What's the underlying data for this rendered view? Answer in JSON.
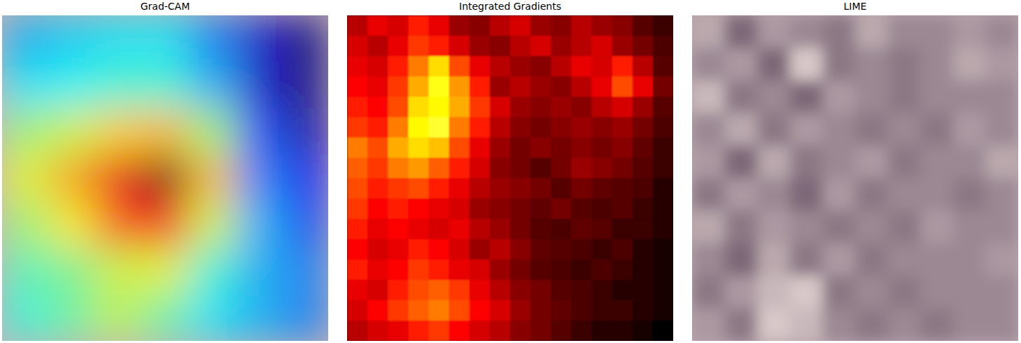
{
  "chart_data": [
    {
      "type": "heatmap",
      "title": "Grad-CAM",
      "tick_labels": false,
      "cells": [
        [
          0.35,
          0.38,
          0.4,
          0.4,
          0.3,
          0.15,
          0.08
        ],
        [
          0.4,
          0.42,
          0.45,
          0.45,
          0.35,
          0.15,
          0.08
        ],
        [
          0.55,
          0.6,
          0.68,
          0.7,
          0.55,
          0.25,
          0.12
        ],
        [
          0.62,
          0.72,
          0.88,
          0.98,
          0.7,
          0.3,
          0.2
        ],
        [
          0.55,
          0.65,
          0.8,
          0.85,
          0.6,
          0.35,
          0.25
        ],
        [
          0.48,
          0.52,
          0.6,
          0.62,
          0.45,
          0.35,
          0.3
        ],
        [
          0.45,
          0.5,
          0.58,
          0.5,
          0.4,
          0.35,
          0.3
        ]
      ]
    },
    {
      "type": "heatmap",
      "title": "Integrated Gradients",
      "tick_labels": false,
      "cells": [
        [
          0.25,
          0.3,
          0.28,
          0.35,
          0.3,
          0.22,
          0.2,
          0.25,
          0.28,
          0.22,
          0.2,
          0.25,
          0.22,
          0.2,
          0.15,
          0.12
        ],
        [
          0.28,
          0.25,
          0.3,
          0.38,
          0.35,
          0.28,
          0.22,
          0.2,
          0.25,
          0.28,
          0.22,
          0.25,
          0.28,
          0.22,
          0.18,
          0.14
        ],
        [
          0.3,
          0.28,
          0.35,
          0.45,
          0.55,
          0.4,
          0.3,
          0.25,
          0.22,
          0.2,
          0.25,
          0.3,
          0.28,
          0.35,
          0.25,
          0.15
        ],
        [
          0.32,
          0.3,
          0.38,
          0.5,
          0.6,
          0.48,
          0.35,
          0.22,
          0.25,
          0.22,
          0.2,
          0.25,
          0.3,
          0.4,
          0.3,
          0.18
        ],
        [
          0.35,
          0.32,
          0.4,
          0.55,
          0.58,
          0.5,
          0.38,
          0.28,
          0.22,
          0.2,
          0.22,
          0.2,
          0.25,
          0.28,
          0.22,
          0.15
        ],
        [
          0.38,
          0.35,
          0.45,
          0.58,
          0.62,
          0.45,
          0.35,
          0.25,
          0.2,
          0.18,
          0.2,
          0.22,
          0.2,
          0.22,
          0.18,
          0.14
        ],
        [
          0.45,
          0.4,
          0.5,
          0.55,
          0.52,
          0.4,
          0.3,
          0.22,
          0.18,
          0.2,
          0.18,
          0.2,
          0.18,
          0.2,
          0.16,
          0.12
        ],
        [
          0.42,
          0.38,
          0.45,
          0.48,
          0.42,
          0.35,
          0.28,
          0.2,
          0.18,
          0.15,
          0.18,
          0.22,
          0.2,
          0.18,
          0.15,
          0.12
        ],
        [
          0.4,
          0.35,
          0.38,
          0.4,
          0.35,
          0.3,
          0.25,
          0.22,
          0.2,
          0.18,
          0.15,
          0.18,
          0.16,
          0.15,
          0.14,
          0.1
        ],
        [
          0.38,
          0.32,
          0.35,
          0.32,
          0.3,
          0.28,
          0.22,
          0.2,
          0.18,
          0.16,
          0.18,
          0.15,
          0.14,
          0.15,
          0.12,
          0.1
        ],
        [
          0.35,
          0.3,
          0.32,
          0.3,
          0.28,
          0.3,
          0.25,
          0.22,
          0.18,
          0.15,
          0.14,
          0.16,
          0.15,
          0.12,
          0.12,
          0.1
        ],
        [
          0.32,
          0.28,
          0.3,
          0.35,
          0.32,
          0.28,
          0.22,
          0.25,
          0.2,
          0.16,
          0.15,
          0.14,
          0.12,
          0.14,
          0.1,
          0.08
        ],
        [
          0.35,
          0.3,
          0.32,
          0.38,
          0.35,
          0.3,
          0.28,
          0.22,
          0.18,
          0.15,
          0.14,
          0.12,
          0.14,
          0.12,
          0.1,
          0.08
        ],
        [
          0.3,
          0.28,
          0.35,
          0.4,
          0.42,
          0.38,
          0.3,
          0.25,
          0.2,
          0.18,
          0.15,
          0.14,
          0.12,
          0.1,
          0.1,
          0.08
        ],
        [
          0.28,
          0.32,
          0.38,
          0.42,
          0.45,
          0.4,
          0.32,
          0.28,
          0.22,
          0.18,
          0.16,
          0.14,
          0.12,
          0.12,
          0.1,
          0.08
        ],
        [
          0.25,
          0.28,
          0.3,
          0.35,
          0.38,
          0.32,
          0.28,
          0.25,
          0.2,
          0.18,
          0.15,
          0.12,
          0.1,
          0.1,
          0.08,
          0.06
        ]
      ]
    },
    {
      "type": "heatmap",
      "title": "LIME",
      "tick_labels": false,
      "cells": [
        [
          0.6,
          0.4,
          0.55,
          0.5,
          0.45,
          0.6,
          0.5,
          0.5,
          0.55,
          0.5
        ],
        [
          0.5,
          0.55,
          0.4,
          0.7,
          0.45,
          0.5,
          0.45,
          0.5,
          0.6,
          0.55
        ],
        [
          0.65,
          0.45,
          0.5,
          0.4,
          0.55,
          0.5,
          0.45,
          0.5,
          0.5,
          0.5
        ],
        [
          0.5,
          0.6,
          0.45,
          0.55,
          0.5,
          0.45,
          0.5,
          0.45,
          0.55,
          0.5
        ],
        [
          0.55,
          0.4,
          0.6,
          0.45,
          0.5,
          0.55,
          0.45,
          0.5,
          0.5,
          0.6
        ],
        [
          0.45,
          0.55,
          0.5,
          0.4,
          0.55,
          0.45,
          0.5,
          0.5,
          0.45,
          0.5
        ],
        [
          0.6,
          0.45,
          0.55,
          0.5,
          0.45,
          0.5,
          0.45,
          0.55,
          0.5,
          0.5
        ],
        [
          0.5,
          0.4,
          0.6,
          0.45,
          0.55,
          0.45,
          0.5,
          0.5,
          0.5,
          0.55
        ],
        [
          0.45,
          0.55,
          0.65,
          0.7,
          0.45,
          0.5,
          0.45,
          0.5,
          0.5,
          0.5
        ],
        [
          0.55,
          0.45,
          0.7,
          0.65,
          0.5,
          0.45,
          0.5,
          0.45,
          0.5,
          0.5
        ]
      ]
    }
  ]
}
